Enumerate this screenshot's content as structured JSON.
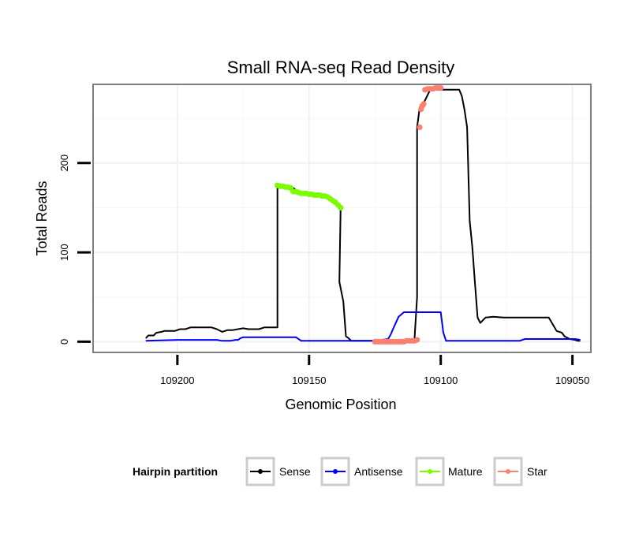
{
  "chart_data": {
    "type": "line",
    "title": "Small RNA-seq Read Density",
    "xlabel": "Genomic Position",
    "ylabel": "Total Reads",
    "x_reversed": true,
    "xlim": [
      109232,
      109043
    ],
    "ylim": [
      -12,
      288
    ],
    "x_ticks": [
      109200,
      109150,
      109100,
      109050
    ],
    "x_tick_labels": [
      "109200",
      "109150",
      "109100",
      "109050"
    ],
    "y_ticks": [
      0,
      100,
      200
    ],
    "y_tick_labels": [
      "0",
      "100",
      "200"
    ],
    "grid": true,
    "legend_position": "bottom",
    "legend": {
      "title": "Hairpin partition",
      "entries": [
        "Sense",
        "Antisense",
        "Mature",
        "Star"
      ]
    },
    "series": [
      {
        "name": "Sense",
        "color": "#000000",
        "style": "line",
        "x": [
          109212,
          109211,
          109209,
          109208,
          109206,
          109205,
          109203,
          109201,
          109199,
          109197,
          109195,
          109193,
          109191,
          109189,
          109187,
          109185,
          109183,
          109181,
          109179,
          109177,
          109175,
          109173,
          109171,
          109169,
          109167,
          109165,
          109164,
          109162,
          109162,
          109156,
          109154,
          109153,
          109150,
          109147,
          109144,
          109141,
          109139,
          109138,
          109138.5,
          109137,
          109136,
          109135,
          109134,
          109133,
          109131,
          109125,
          109120,
          109115,
          109110,
          109109,
          109109,
          109108,
          109106,
          109104,
          109101,
          109098,
          109096,
          109094,
          109093,
          109092,
          109091,
          109090,
          109089,
          109088,
          109087,
          109086,
          109085,
          109083,
          109080,
          109076,
          109074,
          109069,
          109064,
          109059,
          109056,
          109054,
          109053,
          109051,
          109049,
          109048,
          109047
        ],
        "y": [
          4,
          7,
          7,
          10,
          11,
          12,
          12,
          12,
          14,
          14,
          16,
          16,
          16,
          16,
          16,
          14,
          11,
          13,
          13,
          14,
          15,
          14,
          14,
          14,
          16,
          16,
          16,
          16,
          175,
          172,
          168,
          166,
          165,
          164,
          162,
          158,
          153,
          150,
          67,
          45,
          6,
          4,
          1,
          1,
          1,
          1,
          1,
          1,
          1,
          50,
          240,
          262,
          270,
          282,
          282,
          282,
          282,
          282,
          282,
          275,
          260,
          240,
          135,
          105,
          65,
          27,
          21,
          27,
          28,
          27,
          27,
          27,
          27,
          27,
          12,
          10,
          6,
          3,
          2,
          1,
          1
        ]
      },
      {
        "name": "Antisense",
        "color": "#0000ff",
        "style": "line",
        "x": [
          109212,
          109200,
          109185,
          109183,
          109180,
          109178,
          109177,
          109176,
          109175,
          109170,
          109160,
          109155,
          109153,
          109150,
          109140,
          109125,
          109120,
          109119,
          109118,
          109116,
          109114,
          109110,
          109100,
          109099,
          109098,
          109085,
          109070,
          109069,
          109068,
          109055,
          109049,
          109047
        ],
        "y": [
          1,
          2,
          2,
          1,
          1,
          2,
          2,
          4,
          5,
          5,
          5,
          5,
          1,
          1,
          1,
          1,
          3,
          8,
          15,
          28,
          33,
          33,
          33,
          10,
          1,
          1,
          1,
          2,
          3,
          3,
          3,
          2
        ]
      },
      {
        "name": "Mature",
        "color": "#7cfc00",
        "style": "points",
        "x": [
          109162,
          109161,
          109160,
          109159,
          109158,
          109157,
          109156,
          109155,
          109154,
          109153,
          109152,
          109151,
          109150,
          109149,
          109148,
          109147,
          109146,
          109145,
          109144,
          109143,
          109142,
          109141,
          109140,
          109139,
          109138
        ],
        "y": [
          175,
          174,
          174,
          173,
          173,
          172,
          168,
          168,
          167,
          166,
          166,
          166,
          165,
          165,
          164,
          164,
          164,
          163,
          163,
          162,
          160,
          158,
          156,
          153,
          150
        ]
      },
      {
        "name": "Star",
        "color": "#fa8072",
        "style": "points",
        "x": [
          109125,
          109124,
          109123,
          109122,
          109121,
          109120,
          109119,
          109118,
          109117,
          109116,
          109115,
          109114,
          109113,
          109112,
          109111,
          109110,
          109109,
          109108,
          109107.5,
          109107,
          109106.5,
          109106,
          109105,
          109104,
          109103,
          109102,
          109101,
          109100
        ],
        "y": [
          0,
          0,
          0,
          0,
          0,
          0,
          0,
          0,
          0,
          0,
          0,
          0,
          1,
          1,
          1,
          1,
          2,
          240,
          260,
          264,
          266,
          282,
          283,
          283,
          283,
          284,
          284,
          284
        ]
      }
    ]
  }
}
